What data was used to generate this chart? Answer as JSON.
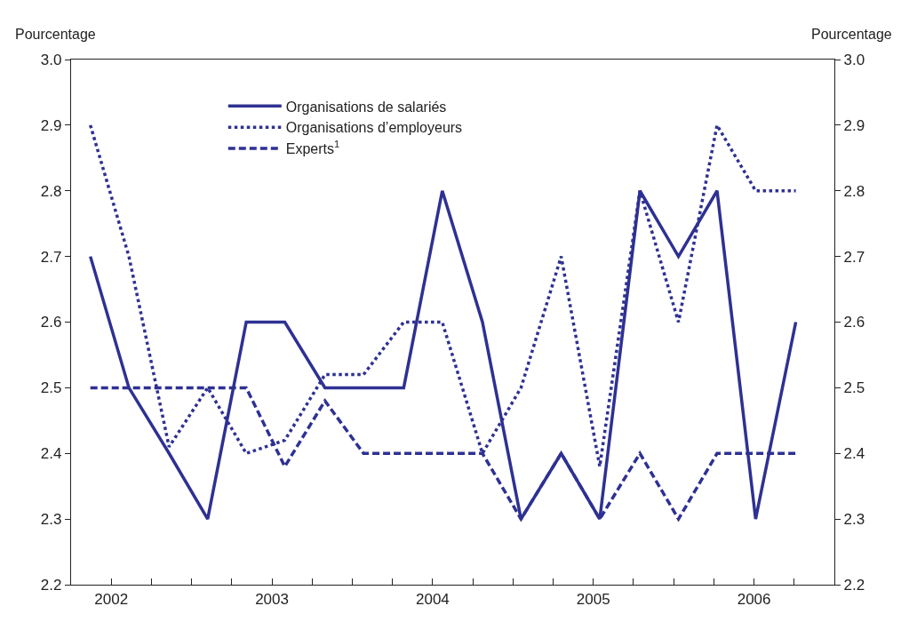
{
  "chart_data": {
    "type": "line",
    "ylabel": "Pourcentage",
    "y2label": "Pourcentage",
    "x": [
      2002.37,
      2002.61,
      2002.86,
      2003.1,
      2003.34,
      2003.58,
      2003.83,
      2004.07,
      2004.32,
      2004.56,
      2004.81,
      2005.05,
      2005.3,
      2005.54,
      2005.79,
      2006.03,
      2006.27,
      2006.51,
      2006.76
    ],
    "series": [
      {
        "name": "Organisations de salariés",
        "color": "#2e3192",
        "line_style": "solid",
        "values": [
          2.7,
          2.5,
          2.4,
          2.3,
          2.6,
          2.6,
          2.5,
          2.5,
          2.5,
          2.8,
          2.6,
          2.3,
          2.4,
          2.3,
          2.8,
          2.7,
          2.8,
          2.3,
          2.6
        ]
      },
      {
        "name": "Organisations d’employeurs",
        "color": "#2e3192",
        "line_style": "dotted",
        "values": [
          2.9,
          2.7,
          2.41,
          2.5,
          2.4,
          2.42,
          2.52,
          2.52,
          2.6,
          2.6,
          2.4,
          2.5,
          2.7,
          2.38,
          2.8,
          2.6,
          2.9,
          2.8,
          2.8
        ]
      },
      {
        "name": "Experts$^{1}$",
        "color": "#2e3192",
        "line_style": "dashed",
        "values": [
          2.5,
          2.5,
          2.5,
          2.5,
          2.5,
          2.38,
          2.48,
          2.4,
          2.4,
          2.4,
          2.4,
          2.3,
          2.4,
          2.3,
          2.4,
          2.3,
          2.4,
          2.4,
          2.4
        ]
      }
    ],
    "xlim": [
      2002.25,
      2007.0
    ],
    "xticks": [
      {
        "value": 2002.5,
        "label": "2002"
      },
      {
        "value": 2002.75,
        "label": null
      },
      {
        "value": 2003.0,
        "label": null
      },
      {
        "value": 2003.25,
        "label": null
      },
      {
        "value": 2003.5,
        "label": "2003"
      },
      {
        "value": 2003.75,
        "label": null
      },
      {
        "value": 2004.0,
        "label": null
      },
      {
        "value": 2004.25,
        "label": null
      },
      {
        "value": 2004.5,
        "label": "2004"
      },
      {
        "value": 2004.75,
        "label": null
      },
      {
        "value": 2005.0,
        "label": null
      },
      {
        "value": 2005.25,
        "label": null
      },
      {
        "value": 2005.5,
        "label": "2005"
      },
      {
        "value": 2005.75,
        "label": null
      },
      {
        "value": 2006.0,
        "label": null
      },
      {
        "value": 2006.25,
        "label": null
      },
      {
        "value": 2006.5,
        "label": "2006"
      },
      {
        "value": 2006.75,
        "label": null
      }
    ],
    "ylim": [
      2.2,
      3.0
    ],
    "yticks": [
      {
        "value": 2.2,
        "label": "2.2"
      },
      {
        "value": 2.3,
        "label": "2.3"
      },
      {
        "value": 2.4,
        "label": "2.4"
      },
      {
        "value": 2.5,
        "label": "2.5"
      },
      {
        "value": 2.6,
        "label": "2.6"
      },
      {
        "value": 2.7,
        "label": "2.7"
      },
      {
        "value": 2.8,
        "label": "2.8"
      },
      {
        "value": 2.9,
        "label": "2.9"
      },
      {
        "value": 3.0,
        "label": "3.0"
      }
    ],
    "y2lim": [
      2.2,
      3.0
    ],
    "y2ticks": [
      {
        "value": 2.2,
        "label": "2.2"
      },
      {
        "value": 2.3,
        "label": "2.3"
      },
      {
        "value": 2.4,
        "label": "2.4"
      },
      {
        "value": 2.5,
        "label": "2.5"
      },
      {
        "value": 2.6,
        "label": "2.6"
      },
      {
        "value": 2.7,
        "label": "2.7"
      },
      {
        "value": 2.8,
        "label": "2.8"
      },
      {
        "value": 2.9,
        "label": "2.9"
      },
      {
        "value": 3.0,
        "label": "3.0"
      }
    ],
    "legend": "top left",
    "marker": "none"
  }
}
